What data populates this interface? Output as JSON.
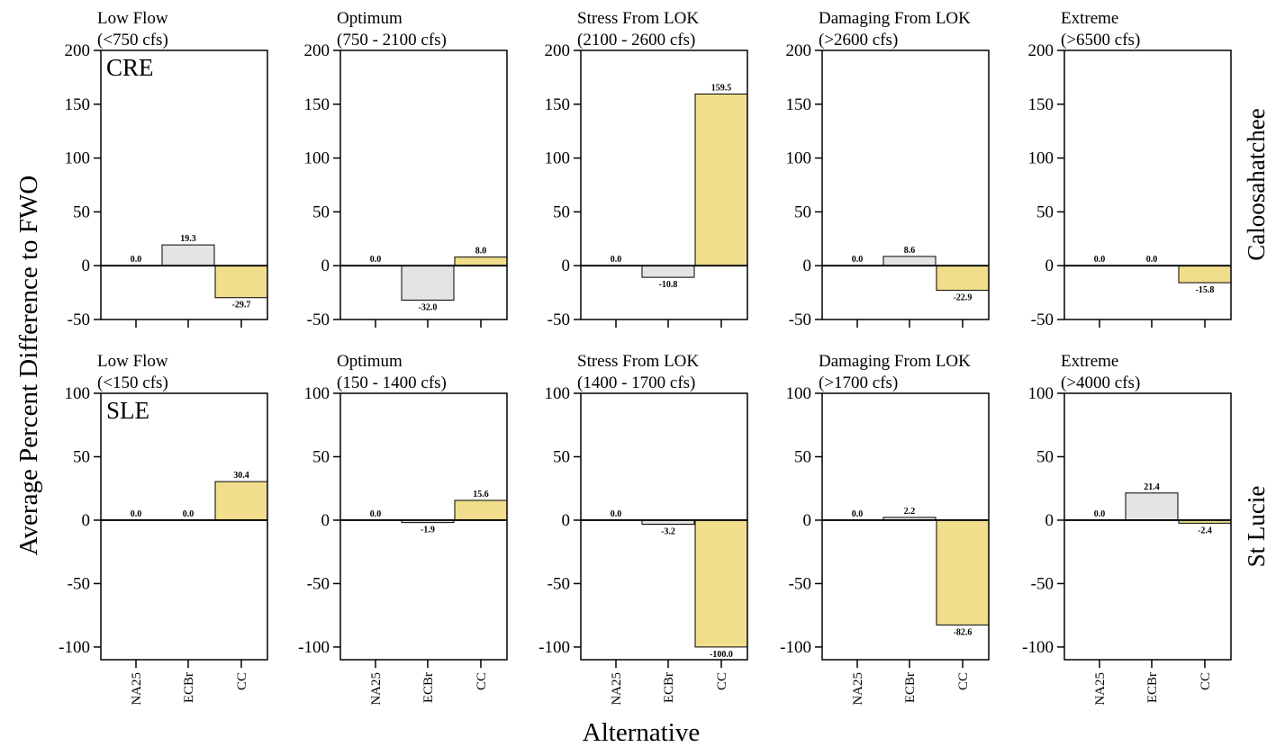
{
  "figure": {
    "ylabel": "Average Percent Difference to FWO",
    "xlabel": "Alternative"
  },
  "colors": {
    "NA25": "#ffffff",
    "ECBr": "#e4e4e4",
    "CC": "#f1de8c",
    "stroke": "#000000"
  },
  "chart_data": [
    {
      "type": "bar",
      "row": 0,
      "col": 0,
      "row_label": "Caloosahatchee",
      "inset_label": "CRE",
      "title": [
        "Low Flow",
        "(<750 cfs)"
      ],
      "categories": [
        "NA25",
        "ECBr",
        "CC"
      ],
      "values": [
        0.0,
        19.3,
        -29.7
      ],
      "value_labels": [
        "0.0",
        "19.3",
        "-29.7"
      ],
      "ylim": [
        -50,
        200
      ],
      "yticks": [
        -50,
        0,
        50,
        100,
        150,
        200
      ]
    },
    {
      "type": "bar",
      "row": 0,
      "col": 1,
      "title": [
        "Optimum",
        "(750 - 2100 cfs)"
      ],
      "categories": [
        "NA25",
        "ECBr",
        "CC"
      ],
      "values": [
        0.0,
        -32.0,
        8.0
      ],
      "value_labels": [
        "0.0",
        "-32.0",
        "8.0"
      ],
      "ylim": [
        -50,
        200
      ],
      "yticks": [
        -50,
        0,
        50,
        100,
        150,
        200
      ]
    },
    {
      "type": "bar",
      "row": 0,
      "col": 2,
      "title": [
        "Stress From LOK",
        "(2100 - 2600 cfs)"
      ],
      "categories": [
        "NA25",
        "ECBr",
        "CC"
      ],
      "values": [
        0.0,
        -10.8,
        159.5
      ],
      "value_labels": [
        "0.0",
        "-10.8",
        "159.5"
      ],
      "ylim": [
        -50,
        200
      ],
      "yticks": [
        -50,
        0,
        50,
        100,
        150,
        200
      ]
    },
    {
      "type": "bar",
      "row": 0,
      "col": 3,
      "title": [
        "Damaging From LOK",
        "(>2600 cfs)"
      ],
      "categories": [
        "NA25",
        "ECBr",
        "CC"
      ],
      "values": [
        0.0,
        8.6,
        -22.9
      ],
      "value_labels": [
        "0.0",
        "8.6",
        "-22.9"
      ],
      "ylim": [
        -50,
        200
      ],
      "yticks": [
        -50,
        0,
        50,
        100,
        150,
        200
      ]
    },
    {
      "type": "bar",
      "row": 0,
      "col": 4,
      "title": [
        "Extreme",
        "(>6500 cfs)"
      ],
      "categories": [
        "NA25",
        "ECBr",
        "CC"
      ],
      "values": [
        0.0,
        0.0,
        -15.8
      ],
      "value_labels": [
        "0.0",
        "0.0",
        "-15.8"
      ],
      "ylim": [
        -50,
        200
      ],
      "yticks": [
        -50,
        0,
        50,
        100,
        150,
        200
      ]
    },
    {
      "type": "bar",
      "row": 1,
      "col": 0,
      "row_label": "St Lucie",
      "inset_label": "SLE",
      "title": [
        "Low Flow",
        "(<150 cfs)"
      ],
      "categories": [
        "NA25",
        "ECBr",
        "CC"
      ],
      "values": [
        0.0,
        0.0,
        30.4
      ],
      "value_labels": [
        "0.0",
        "0.0",
        "30.4"
      ],
      "ylim": [
        -110,
        100
      ],
      "yticks": [
        -100,
        -50,
        0,
        50,
        100
      ]
    },
    {
      "type": "bar",
      "row": 1,
      "col": 1,
      "title": [
        "Optimum",
        "(150 - 1400 cfs)"
      ],
      "categories": [
        "NA25",
        "ECBr",
        "CC"
      ],
      "values": [
        0.0,
        -1.9,
        15.6
      ],
      "value_labels": [
        "0.0",
        "-1.9",
        "15.6"
      ],
      "ylim": [
        -110,
        100
      ],
      "yticks": [
        -100,
        -50,
        0,
        50,
        100
      ]
    },
    {
      "type": "bar",
      "row": 1,
      "col": 2,
      "title": [
        "Stress From LOK",
        "(1400 - 1700 cfs)"
      ],
      "categories": [
        "NA25",
        "ECBr",
        "CC"
      ],
      "values": [
        0.0,
        -3.2,
        -100.0
      ],
      "value_labels": [
        "0.0",
        "-3.2",
        "-100.0"
      ],
      "ylim": [
        -110,
        100
      ],
      "yticks": [
        -100,
        -50,
        0,
        50,
        100
      ]
    },
    {
      "type": "bar",
      "row": 1,
      "col": 3,
      "title": [
        "Damaging From LOK",
        "(>1700 cfs)"
      ],
      "categories": [
        "NA25",
        "ECBr",
        "CC"
      ],
      "values": [
        0.0,
        2.2,
        -82.6
      ],
      "value_labels": [
        "0.0",
        "2.2",
        "-82.6"
      ],
      "ylim": [
        -110,
        100
      ],
      "yticks": [
        -100,
        -50,
        0,
        50,
        100
      ]
    },
    {
      "type": "bar",
      "row": 1,
      "col": 4,
      "title": [
        "Extreme",
        "(>4000 cfs)"
      ],
      "categories": [
        "NA25",
        "ECBr",
        "CC"
      ],
      "values": [
        0.0,
        21.4,
        -2.4
      ],
      "value_labels": [
        "0.0",
        "21.4",
        "-2.4"
      ],
      "ylim": [
        -110,
        100
      ],
      "yticks": [
        -100,
        -50,
        0,
        50,
        100
      ]
    }
  ]
}
